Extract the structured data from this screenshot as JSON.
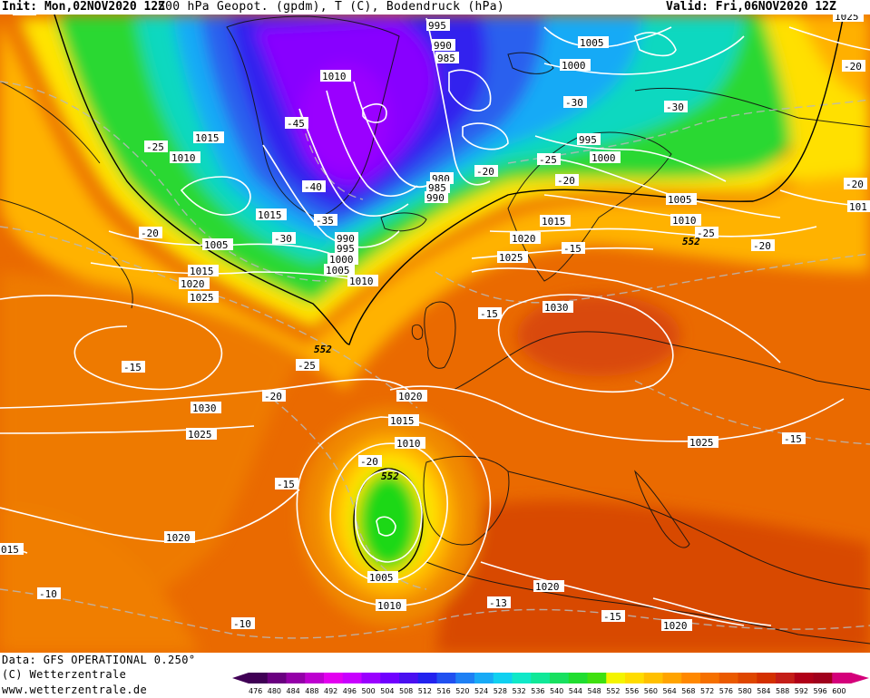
{
  "header": {
    "init": "Init: Mon,02NOV2020 12Z",
    "title": "500 hPa Geopot. (gpdm), T (C), Bodendruck (hPa)",
    "valid": "Valid: Fri,06NOV2020 12Z"
  },
  "footer": {
    "data_line": "Data: GFS OPERATIONAL 0.250°",
    "copyright": "(C) Wetterzentrale",
    "website": "www.wetterzentrale.de"
  },
  "colors": {
    "isobar": "#ffffff",
    "isotherm": "#b9b9b9",
    "contour_552": "#000000",
    "coast": "#111111"
  },
  "scale": {
    "values": [
      "476",
      "480",
      "484",
      "488",
      "492",
      "496",
      "500",
      "504",
      "508",
      "512",
      "516",
      "520",
      "524",
      "528",
      "532",
      "536",
      "540",
      "544",
      "548",
      "552",
      "556",
      "560",
      "564",
      "568",
      "572",
      "576",
      "580",
      "584",
      "588",
      "592",
      "596",
      "600"
    ],
    "colors": [
      "#400055",
      "#6a0080",
      "#9400a8",
      "#bd00d0",
      "#e300f0",
      "#c800ff",
      "#9a00ff",
      "#7000ff",
      "#4a10f0",
      "#2222ee",
      "#2050f0",
      "#1e80f4",
      "#18aaf6",
      "#10d0f0",
      "#10e8c8",
      "#10e898",
      "#18e060",
      "#20dd30",
      "#40e010",
      "#f4f400",
      "#ffdc00",
      "#ffc000",
      "#ffa400",
      "#ff8800",
      "#f57000",
      "#ea5a00",
      "#de4600",
      "#d33000",
      "#c41e18",
      "#b00018",
      "#a0001c",
      "#d4007a"
    ]
  },
  "labels": {
    "isobars": [
      {
        "text": "995"
      },
      {
        "text": "990"
      },
      {
        "text": "985"
      },
      {
        "text": "1005"
      },
      {
        "text": "1000"
      },
      {
        "text": "1010"
      },
      {
        "text": "1015"
      },
      {
        "text": "1010"
      },
      {
        "text": "995"
      },
      {
        "text": "1000"
      },
      {
        "text": "980"
      },
      {
        "text": "985"
      },
      {
        "text": "990"
      },
      {
        "text": "1005"
      },
      {
        "text": "1010"
      },
      {
        "text": "1015"
      },
      {
        "text": "990"
      },
      {
        "text": "995"
      },
      {
        "text": "1000"
      },
      {
        "text": "1005"
      },
      {
        "text": "1010"
      },
      {
        "text": "1015"
      },
      {
        "text": "1020"
      },
      {
        "text": "1025"
      },
      {
        "text": "1005"
      },
      {
        "text": "1015"
      },
      {
        "text": "1020"
      },
      {
        "text": "1025"
      },
      {
        "text": "1030"
      },
      {
        "text": "1020"
      },
      {
        "text": "1015"
      },
      {
        "text": "1010"
      },
      {
        "text": "1030"
      },
      {
        "text": "1025"
      },
      {
        "text": "1025"
      },
      {
        "text": "1020"
      },
      {
        "text": "1005"
      },
      {
        "text": "1010"
      },
      {
        "text": "1020"
      },
      {
        "text": "1020"
      },
      {
        "text": "015"
      },
      {
        "text": "1025"
      },
      {
        "text": "101"
      }
    ],
    "temps": [
      {
        "text": "-45"
      },
      {
        "text": "-40"
      },
      {
        "text": "-35"
      },
      {
        "text": "-30"
      },
      {
        "text": "-30"
      },
      {
        "text": "-30"
      },
      {
        "text": "-25"
      },
      {
        "text": "-25"
      },
      {
        "text": "-20"
      },
      {
        "text": "-20"
      },
      {
        "text": "-25"
      },
      {
        "text": "-20"
      },
      {
        "text": "-20"
      },
      {
        "text": "-15"
      },
      {
        "text": "-15"
      },
      {
        "text": "-15"
      },
      {
        "text": "-25"
      },
      {
        "text": "-20"
      },
      {
        "text": "-20"
      },
      {
        "text": "-15"
      },
      {
        "text": "-13"
      },
      {
        "text": "-15"
      },
      {
        "text": "-10"
      },
      {
        "text": "-10"
      },
      {
        "text": "-15"
      },
      {
        "text": "-20"
      },
      {
        "text": "-20"
      },
      {
        "text": "-25"
      }
    ],
    "contours_552": [
      {
        "text": "552"
      },
      {
        "text": "552"
      },
      {
        "text": "552"
      }
    ]
  }
}
